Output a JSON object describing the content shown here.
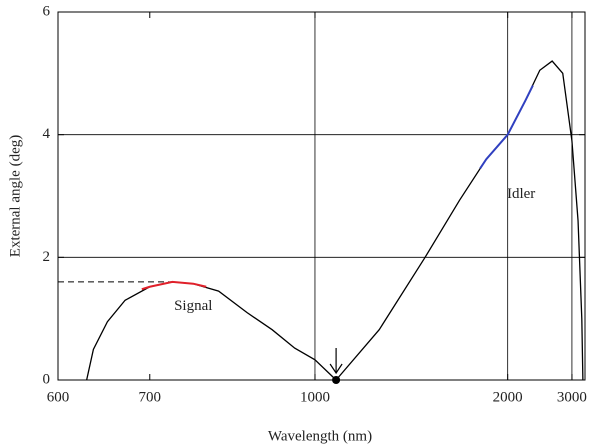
{
  "chart_data": {
    "type": "line",
    "x_label": "Wavelength (nm)",
    "y_label": "External angle (deg)",
    "xscale": "reciprocal",
    "xlim": [
      600,
      3340
    ],
    "ylim": [
      0,
      6
    ],
    "xticks": [
      600,
      700,
      1000,
      2000,
      3000
    ],
    "yticks": [
      0,
      2,
      4,
      6
    ],
    "xgrid": [
      1000,
      2000,
      3000
    ],
    "ygrid": [
      2,
      4
    ],
    "series": [
      {
        "color": "#000000",
        "x": [
          628,
          635,
          650,
          670,
          700,
          730,
          760,
          800,
          850,
          900,
          950,
          1000,
          1058
        ],
        "values": [
          0,
          0.5,
          0.95,
          1.3,
          1.52,
          1.6,
          1.57,
          1.45,
          1.1,
          0.82,
          0.52,
          0.33,
          0
        ]
      },
      {
        "color": "#000000",
        "x": [
          1058,
          1200,
          1400,
          1600,
          1800,
          2000,
          2200,
          2400,
          2600,
          2800,
          3000,
          3150,
          3250,
          3280
        ],
        "values": [
          0,
          0.82,
          2.0,
          2.93,
          3.6,
          4.0,
          4.55,
          5.05,
          5.2,
          5.0,
          3.9,
          2.6,
          1.0,
          0
        ]
      },
      {
        "color": "#e0202a",
        "x": [
          690,
          700,
          730,
          760,
          780
        ],
        "values": [
          1.48,
          1.52,
          1.6,
          1.57,
          1.52
        ]
      },
      {
        "color": "#3040c0",
        "x": [
          1750,
          1800,
          2000,
          2200,
          2300
        ],
        "values": [
          3.45,
          3.6,
          4.0,
          4.55,
          4.8
        ]
      }
    ],
    "reference_line": {
      "y": 1.6,
      "x_end": 730
    },
    "point": {
      "x": 1058,
      "y": 0
    },
    "annotations": [
      {
        "text": "Signal",
        "x": 760,
        "y": 1.2
      },
      {
        "text": "Idler",
        "x": 2150,
        "y": 3.02
      }
    ]
  }
}
